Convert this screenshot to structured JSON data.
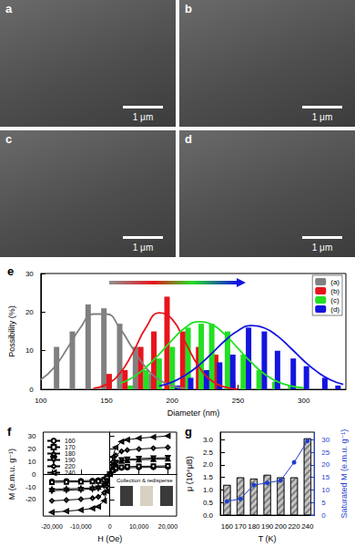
{
  "chart_data": [
    {
      "type": "image",
      "title": "a",
      "scale_bar": "1 μm"
    },
    {
      "type": "image",
      "title": "b",
      "scale_bar": "1 μm"
    },
    {
      "type": "image",
      "title": "c",
      "scale_bar": "1 μm"
    },
    {
      "type": "image",
      "title": "d",
      "scale_bar": "1 μm"
    },
    {
      "type": "bar",
      "title": "e",
      "x_label": "Diameter (nm)",
      "y_label": "Possibility (%)",
      "xlim": [
        100,
        332
      ],
      "xticks": [
        100,
        150,
        200,
        250,
        300
      ],
      "ylim": [
        0,
        30
      ],
      "yticks": [
        0,
        10,
        20,
        30
      ],
      "grid": false,
      "legend": "upper right",
      "series": [
        {
          "name": "(a)",
          "type": "bar",
          "color": "#808080",
          "x": [
            112,
            124,
            136,
            148,
            160,
            172,
            184
          ],
          "values": [
            11,
            15,
            22,
            21,
            17,
            11,
            4
          ]
        },
        {
          "name": "(b)",
          "type": "bar",
          "color": "#e8141c",
          "x": [
            152,
            164,
            176,
            186,
            196,
            208,
            220,
            233,
            246
          ],
          "values": [
            4,
            5,
            11,
            15,
            24,
            15,
            11,
            9,
            2
          ]
        },
        {
          "name": "(c)",
          "type": "bar",
          "color": "#22e022",
          "x": [
            168,
            180,
            190,
            200,
            212,
            222,
            230,
            242,
            254,
            266,
            278,
            290
          ],
          "values": [
            1,
            5,
            8,
            11,
            16,
            17,
            17,
            15,
            9,
            5,
            2,
            1
          ]
        },
        {
          "name": "(d)",
          "type": "bar",
          "color": "#1414e0",
          "x": [
            204,
            214,
            226,
            236,
            246,
            258,
            270,
            280,
            292,
            302,
            316,
            326
          ],
          "values": [
            1,
            3,
            5,
            7,
            9,
            16,
            15,
            10,
            8,
            6,
            3,
            1
          ]
        },
        {
          "type": "line",
          "color": "#808080",
          "x": [
            100,
            110,
            120,
            130,
            140,
            150,
            160,
            170,
            180,
            190,
            200,
            210
          ],
          "values": [
            2.5,
            5.6,
            10.5,
            15.9,
            19.5,
            19.5,
            15.9,
            10.5,
            5.6,
            2.5,
            0.9,
            0.3
          ]
        },
        {
          "type": "line",
          "color": "#e8141c",
          "x": [
            140,
            150,
            160,
            170,
            180,
            190,
            200,
            210,
            220,
            230,
            240,
            250
          ],
          "values": [
            0.3,
            1.3,
            4.1,
            9.5,
            16,
            19.8,
            18.1,
            12.1,
            6,
            2.2,
            0.6,
            0.1
          ]
        },
        {
          "type": "line",
          "color": "#22e022",
          "x": [
            160,
            170,
            180,
            190,
            200,
            210,
            220,
            230,
            240,
            250,
            260,
            270,
            280,
            290,
            300
          ],
          "values": [
            1.5,
            3.1,
            5.7,
            9.1,
            12.8,
            16,
            17.5,
            16.8,
            14.2,
            10.6,
            7,
            4,
            2,
            0.9,
            0.4
          ]
        },
        {
          "type": "line",
          "color": "#1414e0",
          "x": [
            190,
            200,
            210,
            220,
            230,
            240,
            250,
            260,
            270,
            280,
            290,
            300,
            310,
            320,
            330
          ],
          "values": [
            0.9,
            1.9,
            3.7,
            6.2,
            9.3,
            12.6,
            15.2,
            16.5,
            15.9,
            13.8,
            10.7,
            7.4,
            4.6,
            2.5,
            1.3
          ]
        }
      ]
    },
    {
      "type": "line",
      "title": "f",
      "x_label": "H (Oe)",
      "y_label": "M (e.m.u. g⁻¹)",
      "xlim": [
        -23000,
        23000
      ],
      "xticks": [
        {
          "value": -20000,
          "label": "-20,000"
        },
        {
          "value": -10000,
          "label": "-10,000"
        },
        0,
        {
          "value": 10000,
          "label": "10,000"
        },
        {
          "value": 20000,
          "label": "20,000"
        }
      ],
      "ylim": [
        -33,
        33
      ],
      "yticks": [
        -20,
        -10,
        0,
        10,
        20,
        30
      ],
      "grid": false,
      "legend": "upper left",
      "annotations": [
        "Collection & redisperse"
      ],
      "x": [
        -20000,
        -15000,
        -10000,
        -6000,
        -4000,
        -2000,
        -1000,
        0,
        1000,
        2000,
        4000,
        6000,
        10000,
        15000,
        20000
      ],
      "series": [
        {
          "name": "160",
          "color": "#000000",
          "marker": "circle",
          "values": [
            -5.5,
            -5.3,
            -5.2,
            -5.0,
            -4.7,
            -3.9,
            -2.5,
            0,
            2.5,
            3.9,
            4.7,
            5.0,
            5.2,
            5.3,
            5.5
          ]
        },
        {
          "name": "170",
          "color": "#000000",
          "marker": "square",
          "values": [
            -6.5,
            -6.3,
            -6.1,
            -5.9,
            -5.5,
            -4.6,
            -2.9,
            0,
            2.9,
            4.6,
            5.5,
            5.9,
            6.1,
            6.3,
            6.5
          ]
        },
        {
          "name": "180",
          "color": "#000000",
          "marker": "triangle",
          "values": [
            -12,
            -11.6,
            -11.3,
            -10.8,
            -10.2,
            -8.4,
            -5.4,
            0,
            5.4,
            8.4,
            10.2,
            10.8,
            11.3,
            11.6,
            12
          ]
        },
        {
          "name": "190",
          "color": "#000000",
          "marker": "triangle_down",
          "values": [
            -13,
            -12.6,
            -12.2,
            -11.7,
            -11.1,
            -9.1,
            -5.9,
            0,
            5.9,
            9.1,
            11.1,
            11.7,
            12.2,
            12.6,
            13
          ]
        },
        {
          "name": "220",
          "color": "#000000",
          "marker": "diamond",
          "values": [
            -21,
            -20.4,
            -19.7,
            -18.9,
            -17.9,
            -14.7,
            -9.5,
            0,
            9.5,
            14.7,
            17.9,
            18.9,
            19.7,
            20.4,
            21
          ]
        },
        {
          "name": "240",
          "color": "#000000",
          "marker": "triangle_left",
          "values": [
            -30,
            -29.1,
            -28.2,
            -27,
            -25.5,
            -21,
            -13.5,
            0,
            13.5,
            21,
            25.5,
            27,
            28.2,
            29.1,
            30
          ]
        }
      ]
    },
    {
      "type": "bar",
      "title": "g",
      "x_label": "T (K)",
      "y_label": "μ (10⁴μB)",
      "y2_label": "Saturated M (e.m.u. g⁻¹)",
      "categories": [
        "160",
        "170",
        "180",
        "190",
        "200",
        "220",
        "240"
      ],
      "ylim": [
        0,
        3.3
      ],
      "yticks": [
        {
          "value": 0,
          "label": "0.0"
        },
        {
          "value": 0.5,
          "label": "0.5"
        },
        {
          "value": 1,
          "label": "1.0"
        },
        {
          "value": 1.5,
          "label": "1.5"
        },
        {
          "value": 2,
          "label": "2.0"
        },
        {
          "value": 2.5,
          "label": "2.5"
        },
        {
          "value": 3,
          "label": "3.0"
        }
      ],
      "y2lim": [
        0,
        33
      ],
      "y2ticks": [
        0,
        5,
        10,
        15,
        20,
        25,
        30
      ],
      "grid": false,
      "series": [
        {
          "type": "bar",
          "color": "#c4c4c4",
          "values": [
            1.2,
            1.5,
            1.45,
            1.6,
            1.5,
            1.5,
            3.05
          ]
        },
        {
          "type": "line",
          "axis": "y2",
          "color": "#1f3fcf",
          "marker": "circle",
          "values": [
            5.5,
            6.5,
            12,
            12.8,
            13.8,
            21,
            29.5
          ]
        }
      ]
    }
  ]
}
